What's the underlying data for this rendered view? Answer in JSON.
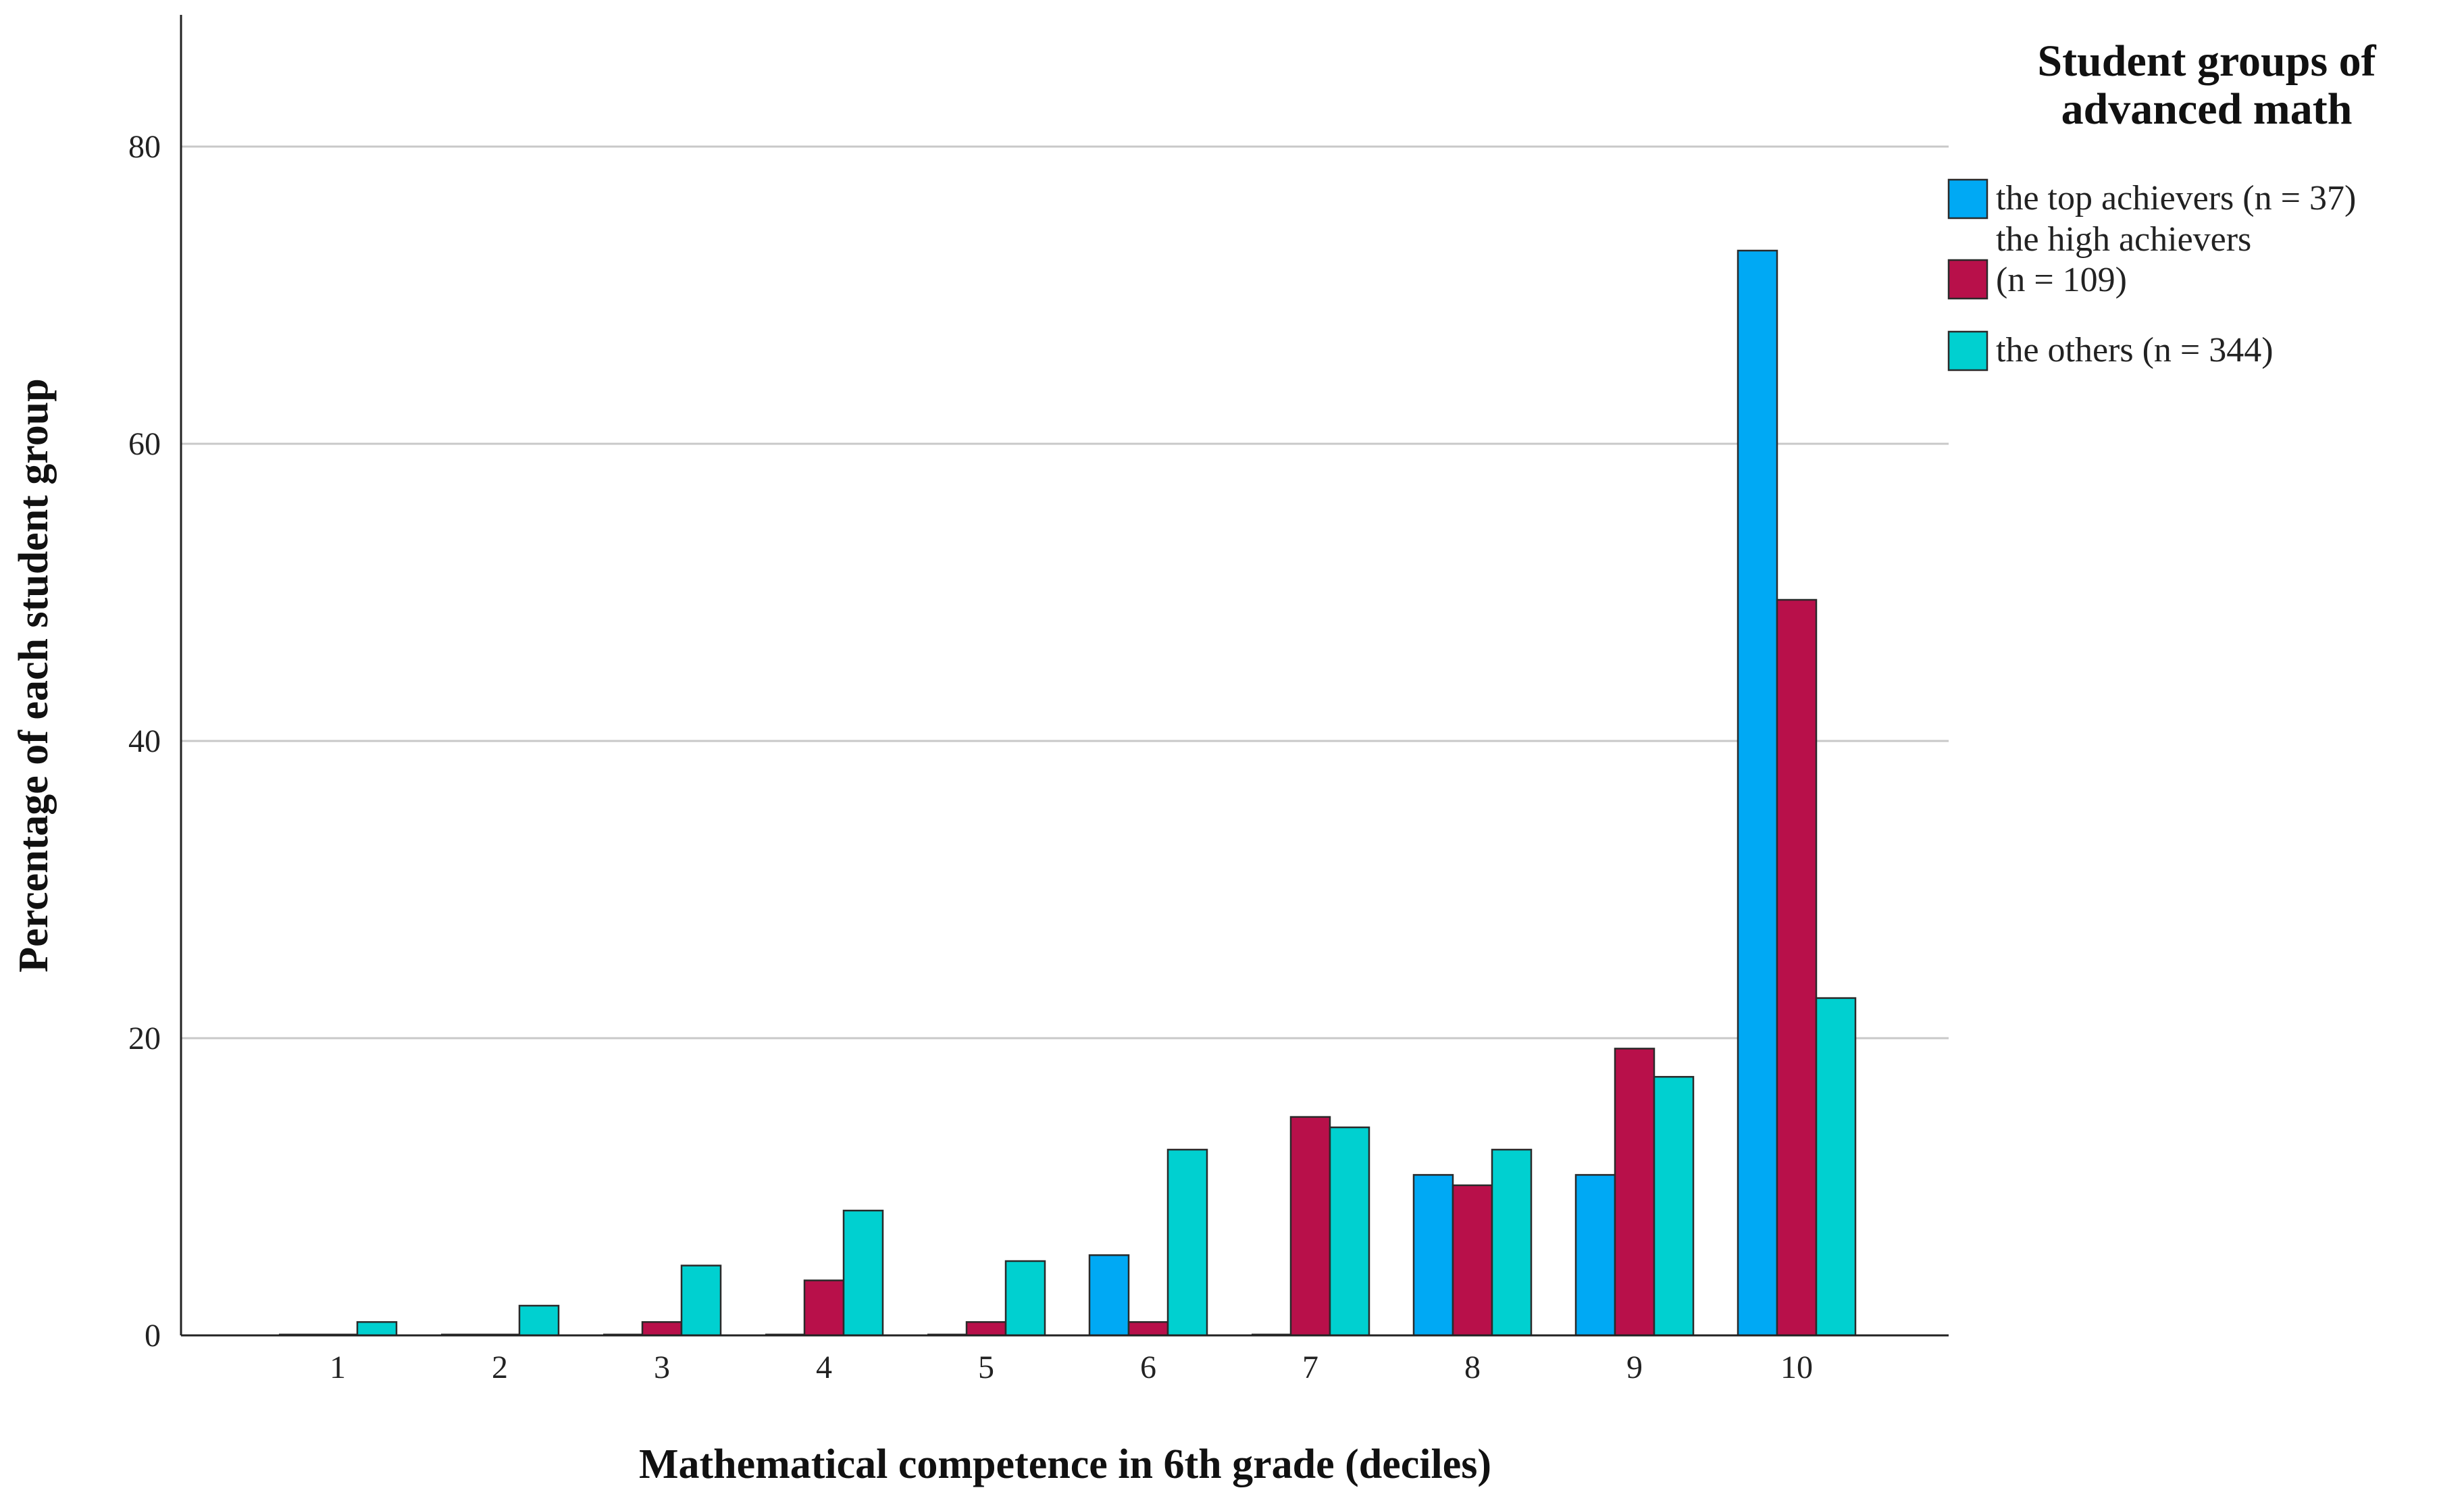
{
  "chart_data": {
    "type": "bar",
    "title": "",
    "xlabel": "Mathematical competence in 6th grade (deciles)",
    "ylabel": "Percentage of each student group",
    "categories": [
      "1",
      "2",
      "3",
      "4",
      "5",
      "6",
      "7",
      "8",
      "9",
      "10"
    ],
    "ylim": [
      0,
      88
    ],
    "yticks": [
      "0",
      "20",
      "40",
      "60",
      "80"
    ],
    "grid": true,
    "legend": {
      "title_line1": "Student groups of",
      "title_line2": "advanced math",
      "placement": "top-right"
    },
    "series": [
      {
        "name": "the top achievers (n = 37)",
        "label_lines": [
          "the top achievers (n = 37)"
        ],
        "color": "#00A9F4",
        "values": [
          0,
          0,
          0,
          0,
          0,
          5.4,
          0,
          10.8,
          10.8,
          73.0
        ]
      },
      {
        "name": "the high achievers (n = 109)",
        "label_lines": [
          "the high achievers",
          "(n = 109)"
        ],
        "color": "#B8104A",
        "values": [
          0,
          0,
          0.9,
          3.7,
          0.9,
          0.9,
          14.7,
          10.1,
          19.3,
          49.5
        ]
      },
      {
        "name": "the others (n = 344)",
        "label_lines": [
          "the others (n = 344)"
        ],
        "color": "#00D0D0",
        "values": [
          0.9,
          2.0,
          4.7,
          8.4,
          5.0,
          12.5,
          14.0,
          12.5,
          17.4,
          22.7
        ]
      }
    ]
  }
}
